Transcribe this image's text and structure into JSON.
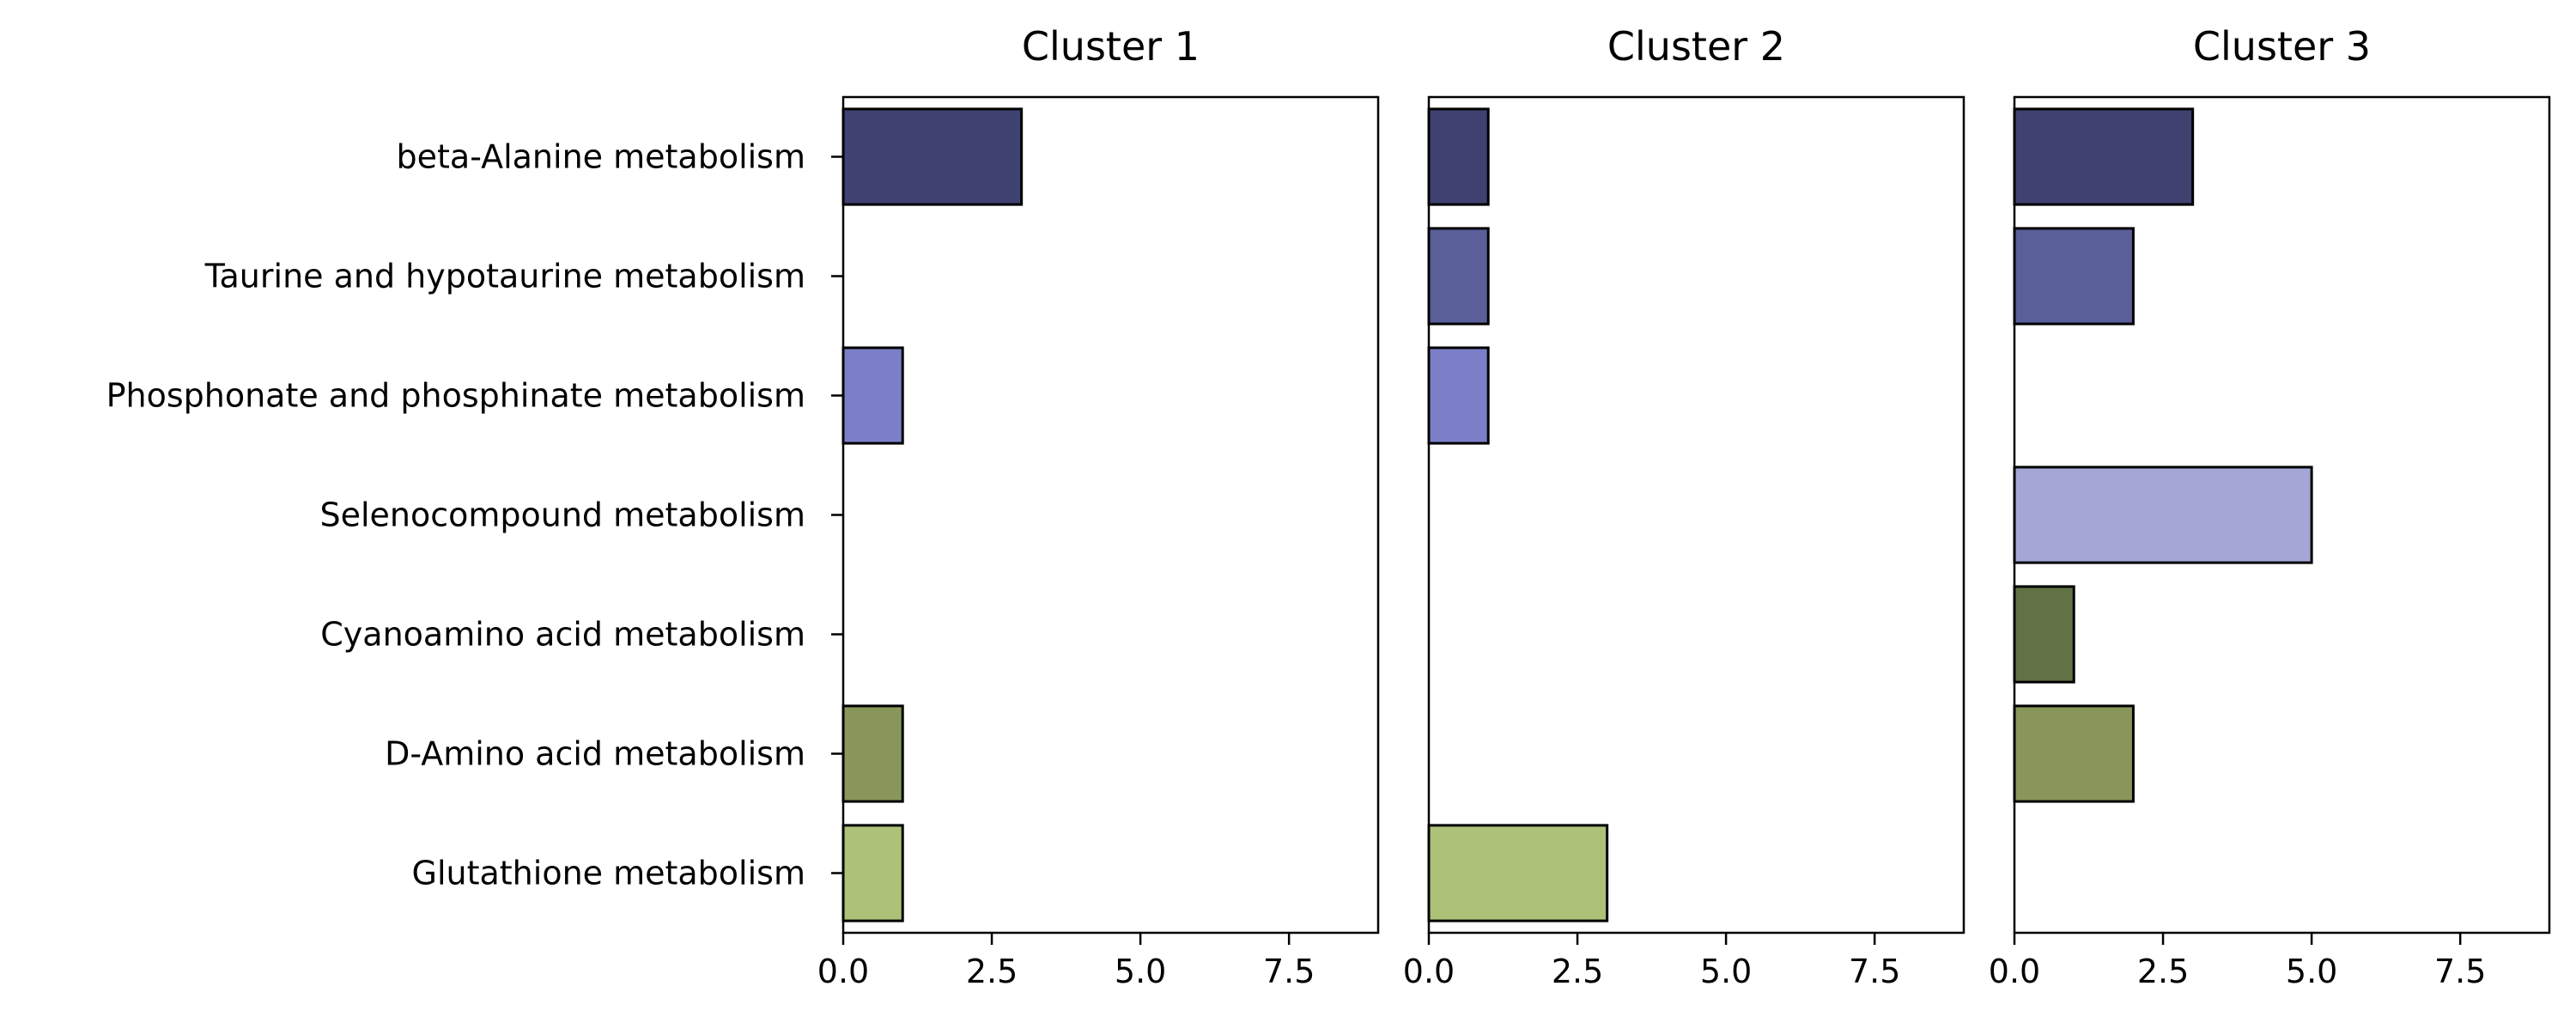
{
  "chart_data": {
    "type": "bar",
    "orientation": "horizontal",
    "categories": [
      "beta-Alanine metabolism",
      "Taurine and hypotaurine metabolism",
      "Phosphonate and phosphinate metabolism",
      "Selenocompound metabolism",
      "Cyanoamino acid metabolism",
      "D-Amino acid metabolism",
      "Glutathione metabolism"
    ],
    "category_colors": [
      "#3f4170",
      "#5a5e99",
      "#7b7fc8",
      "#a4a6d6",
      "#617346",
      "#88965b",
      "#adc178"
    ],
    "bar_edge_color": "#000000",
    "xlim": [
      0,
      9
    ],
    "xticks": [
      0,
      2.5,
      5,
      7.5
    ],
    "xtick_labels": [
      "0.0",
      "2.5",
      "5.0",
      "7.5"
    ],
    "grid": false,
    "legend": "none",
    "panels": [
      {
        "title": "Cluster 1",
        "values": [
          3,
          0,
          1,
          0,
          0,
          1,
          1
        ]
      },
      {
        "title": "Cluster 2",
        "values": [
          1,
          1,
          1,
          0,
          0,
          0,
          3
        ]
      },
      {
        "title": "Cluster 3",
        "values": [
          3,
          2,
          0,
          5,
          1,
          2,
          0
        ]
      }
    ]
  }
}
